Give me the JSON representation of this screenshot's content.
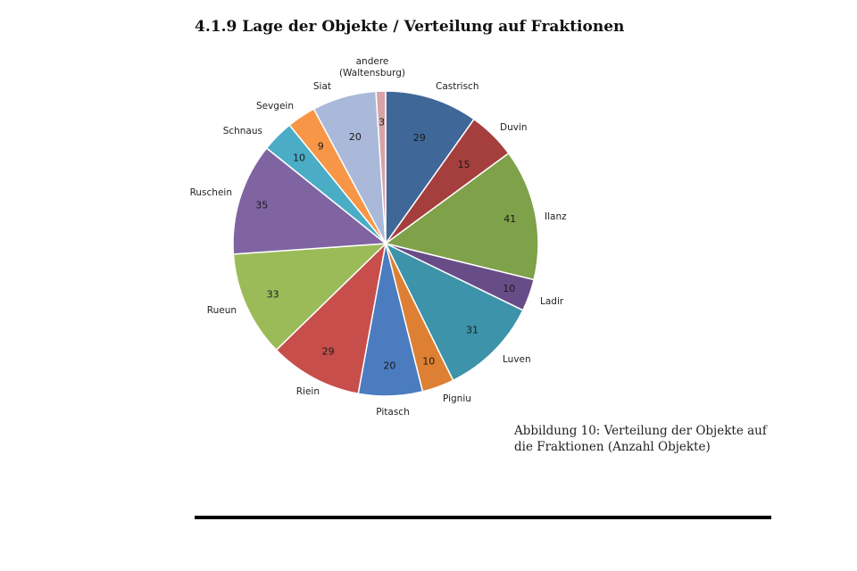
{
  "heading": "4.1.9 Lage der Objekte / Verteilung auf Fraktionen",
  "caption": "Abbildung 10: Verteilung der Objekte auf die Fraktionen (Anzahl Objekte)",
  "chart_data": {
    "type": "pie",
    "title": "",
    "start": "12 o'clock, clockwise",
    "slices": [
      {
        "label": "Castrisch",
        "value": 29,
        "color": "#3f6797"
      },
      {
        "label": "Duvin",
        "value": 15,
        "color": "#a43f3d"
      },
      {
        "label": "Ilanz",
        "value": 41,
        "color": "#7fa14a"
      },
      {
        "label": "Ladir",
        "value": 10,
        "color": "#684c87"
      },
      {
        "label": "Luven",
        "value": 31,
        "color": "#3d93a9"
      },
      {
        "label": "Pigniu",
        "value": 10,
        "color": "#dd8033"
      },
      {
        "label": "Pitasch",
        "value": 20,
        "color": "#4b7cc0"
      },
      {
        "label": "Riein",
        "value": 29,
        "color": "#c74e4b"
      },
      {
        "label": "Rueun",
        "value": 33,
        "color": "#9bbb59"
      },
      {
        "label": "Ruschein",
        "value": 35,
        "color": "#8064a2"
      },
      {
        "label": "Schnaus",
        "value": 10,
        "color": "#4bacc6"
      },
      {
        "label": "Sevgein",
        "value": 9,
        "color": "#f79646"
      },
      {
        "label": "Siat",
        "value": 20,
        "color": "#aab9d9"
      },
      {
        "label": "andere\n(Waltensburg)",
        "value": 3,
        "color": "#d9a3a6"
      }
    ]
  }
}
